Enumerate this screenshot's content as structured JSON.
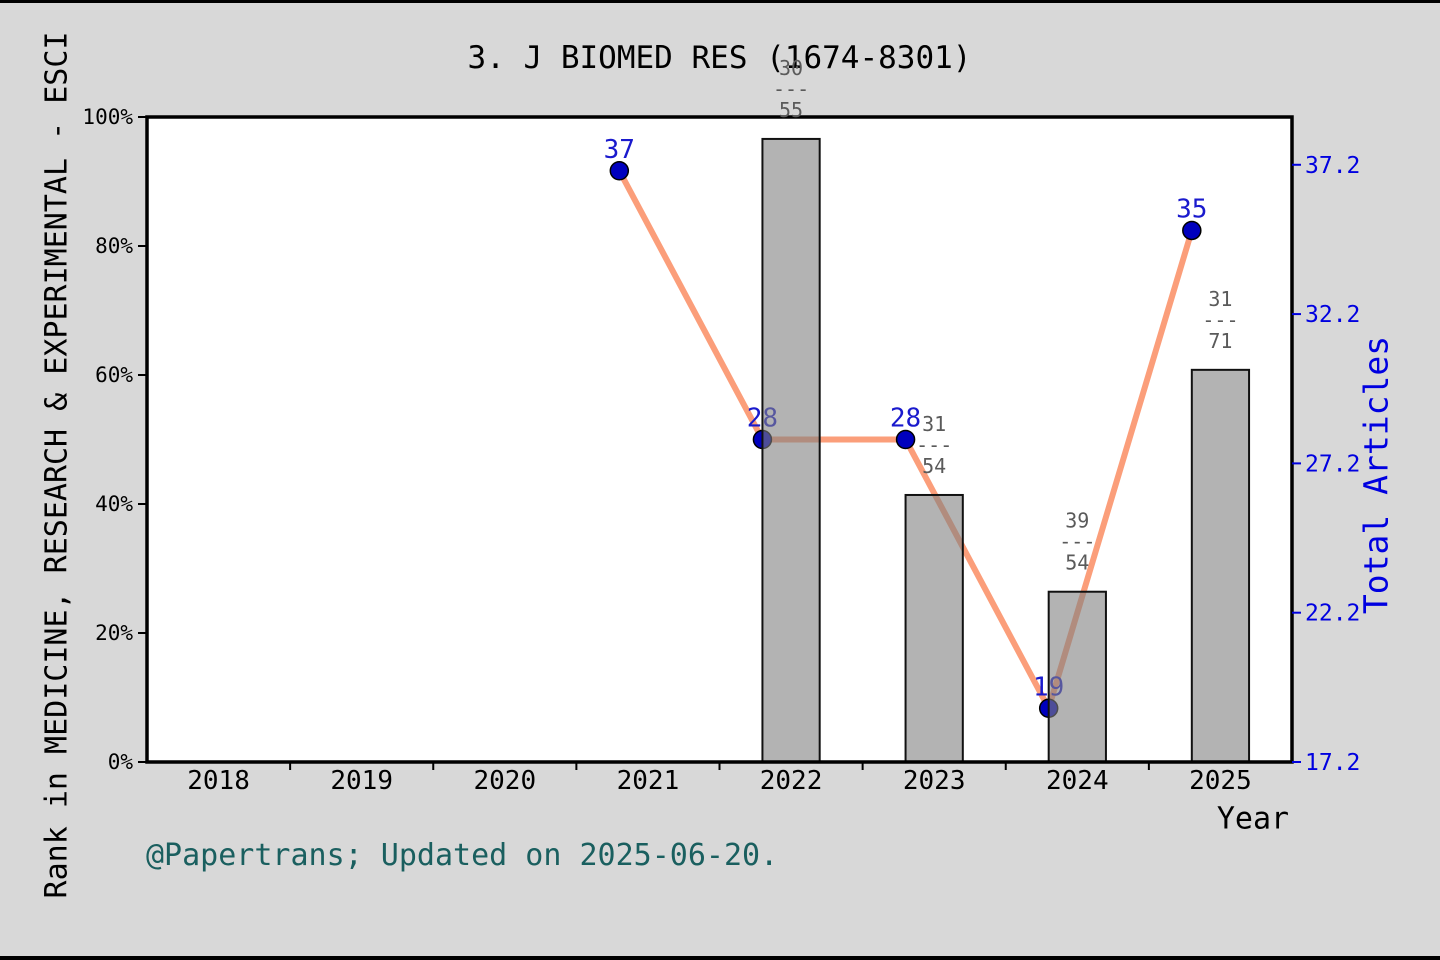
{
  "title": "3. J BIOMED RES (1674-8301)",
  "footer": "@Papertrans; Updated on 2025-06-20.",
  "chart_data": {
    "type": "line+bar",
    "title": "3. J BIOMED RES (1674-8301)",
    "x_label": "Year",
    "x_categories": [
      "2018",
      "2019",
      "2020",
      "2021",
      "2022",
      "2023",
      "2024",
      "2025"
    ],
    "left_axis": {
      "label": "Rank in MEDICINE, RESEARCH & EXPERIMENTAL - ESCI",
      "tick_labels": [
        "0%",
        "20%",
        "40%",
        "60%",
        "80%",
        "100%"
      ],
      "tick_values": [
        0,
        20,
        40,
        60,
        80,
        100
      ],
      "range": [
        0,
        100
      ]
    },
    "right_axis": {
      "label": "Total Articles",
      "tick_labels": [
        "17.2",
        "22.2",
        "27.2",
        "32.2",
        "37.2"
      ],
      "tick_values": [
        17.2,
        22.2,
        27.2,
        32.2,
        37.2
      ],
      "range": [
        17.2,
        38.8
      ]
    },
    "line_series": {
      "name": "Total Articles",
      "axis": "right",
      "points": [
        {
          "year": "2021",
          "value": 37,
          "label": "37"
        },
        {
          "year": "2022",
          "value": 28,
          "label": "28"
        },
        {
          "year": "2023",
          "value": 28,
          "label": "28"
        },
        {
          "year": "2024",
          "value": 19,
          "label": "19"
        },
        {
          "year": "2025",
          "value": 35,
          "label": "35"
        }
      ]
    },
    "bars": {
      "axis": "left",
      "items": [
        {
          "year": "2022",
          "height_pct": 96.6,
          "fraction_top": "30",
          "fraction_bottom": "55"
        },
        {
          "year": "2023",
          "height_pct": 41.4,
          "fraction_top": "31",
          "fraction_bottom": "54"
        },
        {
          "year": "2024",
          "height_pct": 26.4,
          "fraction_top": "39",
          "fraction_bottom": "54"
        },
        {
          "year": "2025",
          "height_pct": 60.8,
          "fraction_top": "31",
          "fraction_bottom": "71"
        }
      ]
    },
    "grid": false,
    "legend": false
  },
  "colors": {
    "background": "#D8D8D8",
    "plot_background": "#FFFFFF",
    "axis": "#000000",
    "bar_fill": "#808080",
    "bar_fill_alpha": 0.6,
    "bar_edge": "#111111",
    "line": "#FB9E7A",
    "marker_fill": "#0000BE",
    "marker_edge": "#000000",
    "point_label": "#1A1ACD",
    "right_axis_text": "#0000E0",
    "fraction_text": "#5A5A5A",
    "footer_text": "#1A5F5F",
    "window_border": "#000000"
  }
}
